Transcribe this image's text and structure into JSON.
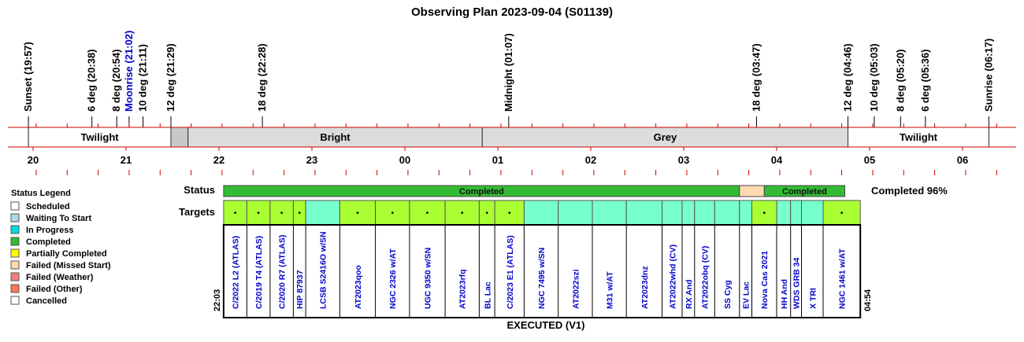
{
  "title": "Observing Plan 2023-09-04 (S01139)",
  "events": [
    {
      "label": "Sunset (19:57)",
      "time": 19.95,
      "color": "#000000"
    },
    {
      "label": "6 deg (20:38)",
      "time": 20.633,
      "color": "#000000"
    },
    {
      "label": "8 deg (20:54)",
      "time": 20.9,
      "color": "#000000"
    },
    {
      "label": "Moonrise (21:02)",
      "time": 21.033,
      "color": "#0000cc"
    },
    {
      "label": "10 deg (21:11)",
      "time": 21.183,
      "color": "#000000"
    },
    {
      "label": "12 deg (21:29)",
      "time": 21.483,
      "color": "#000000"
    },
    {
      "label": "18 deg (22:28)",
      "time": 22.467,
      "color": "#000000"
    },
    {
      "label": "Midnight (01:07)",
      "time": 25.117,
      "color": "#000000"
    },
    {
      "label": "18 deg (03:47)",
      "time": 27.783,
      "color": "#000000"
    },
    {
      "label": "12 deg (04:46)",
      "time": 28.767,
      "color": "#000000"
    },
    {
      "label": "10 deg (05:03)",
      "time": 29.05,
      "color": "#000000"
    },
    {
      "label": "8 deg (05:20)",
      "time": 29.333,
      "color": "#000000"
    },
    {
      "label": "6 deg (05:36)",
      "time": 29.6,
      "color": "#000000"
    },
    {
      "label": "Sunrise (06:17)",
      "time": 30.283,
      "color": "#000000"
    }
  ],
  "periods": [
    {
      "label": "Twilight",
      "start": 19.95,
      "end": 21.483,
      "color": "#ffffff"
    },
    {
      "label": "",
      "start": 21.483,
      "end": 21.667,
      "color": "#c8c8c8"
    },
    {
      "label": "Bright",
      "start": 21.667,
      "end": 24.833,
      "color": "#dcdcdc"
    },
    {
      "label": "Grey",
      "start": 24.833,
      "end": 28.767,
      "color": "#dcdcdc"
    },
    {
      "label": "Twilight",
      "start": 28.767,
      "end": 30.283,
      "color": "#ffffff"
    }
  ],
  "hour_ticks": [
    {
      "label": "20",
      "time": 20
    },
    {
      "label": "21",
      "time": 21
    },
    {
      "label": "22",
      "time": 22
    },
    {
      "label": "23",
      "time": 23
    },
    {
      "label": "00",
      "time": 24
    },
    {
      "label": "01",
      "time": 25
    },
    {
      "label": "02",
      "time": 26
    },
    {
      "label": "03",
      "time": 27
    },
    {
      "label": "04",
      "time": 28
    },
    {
      "label": "05",
      "time": 29
    },
    {
      "label": "06",
      "time": 30
    }
  ],
  "legend": {
    "title": "Status Legend",
    "items": [
      {
        "label": "Scheduled",
        "color": "#ffffff"
      },
      {
        "label": "Waiting To Start",
        "color": "#add8e6"
      },
      {
        "label": "In Progress",
        "color": "#00dddd"
      },
      {
        "label": "Completed",
        "color": "#33bb33"
      },
      {
        "label": "Partially Completed",
        "color": "#ffff00"
      },
      {
        "label": "Failed (Missed Start)",
        "color": "#ffdab0"
      },
      {
        "label": "Failed (Weather)",
        "color": "#f08080"
      },
      {
        "label": "Failed (Other)",
        "color": "#ff7755"
      },
      {
        "label": "Cancelled",
        "color": "#ffffff"
      }
    ]
  },
  "status_row": {
    "label": "Status",
    "segments": [
      {
        "label": "Completed",
        "start": 22.05,
        "end": 27.6,
        "color": "#33bb33"
      },
      {
        "label": "",
        "start": 27.6,
        "end": 27.867,
        "color": "#ffdab0"
      },
      {
        "label": "Completed",
        "start": 27.867,
        "end": 28.733,
        "color": "#33bb33"
      }
    ],
    "summary": "Completed 96%"
  },
  "targets_row": {
    "label": "Targets",
    "start_time": "22:03",
    "end_time": "04:54",
    "plan_start": 22.05,
    "plan_end": 28.9,
    "targets": [
      {
        "name": "C/2022 L2 (ATLAS)",
        "start": 22.05,
        "end": 22.3,
        "color": "#aaff33",
        "marker": "•"
      },
      {
        "name": "C/2019 T4 (ATLAS)",
        "start": 22.3,
        "end": 22.55,
        "color": "#aaff33",
        "marker": "•"
      },
      {
        "name": "C/2020 R7 (ATLAS)",
        "start": 22.55,
        "end": 22.8,
        "color": "#aaff33",
        "marker": "•"
      },
      {
        "name": "HIP 87937",
        "start": 22.8,
        "end": 22.933,
        "color": "#aaff33",
        "marker": "•"
      },
      {
        "name": "LCSB S2416O w/SN",
        "start": 22.933,
        "end": 23.3,
        "color": "#77ffcc",
        "marker": ""
      },
      {
        "name": "AT2023qoo",
        "start": 23.3,
        "end": 23.683,
        "color": "#aaff33",
        "marker": "•"
      },
      {
        "name": "NGC 2326 w/AT",
        "start": 23.683,
        "end": 24.05,
        "color": "#aaff33",
        "marker": "•"
      },
      {
        "name": "UGC 9350 w/SN",
        "start": 24.05,
        "end": 24.433,
        "color": "#aaff33",
        "marker": "•"
      },
      {
        "name": "AT2023rfq",
        "start": 24.433,
        "end": 24.8,
        "color": "#aaff33",
        "marker": "•"
      },
      {
        "name": "BL Lac",
        "start": 24.8,
        "end": 24.967,
        "color": "#aaff33",
        "marker": "•"
      },
      {
        "name": "C/2023 E1 (ATLAS)",
        "start": 24.967,
        "end": 25.283,
        "color": "#aaff33",
        "marker": "•"
      },
      {
        "name": "NGC 7495 w/SN",
        "start": 25.283,
        "end": 25.65,
        "color": "#77ffcc",
        "marker": ""
      },
      {
        "name": "AT2022szi",
        "start": 25.65,
        "end": 26.017,
        "color": "#77ffcc",
        "marker": ""
      },
      {
        "name": "M31 w/AT",
        "start": 26.017,
        "end": 26.383,
        "color": "#77ffcc",
        "marker": ""
      },
      {
        "name": "AT2023dnz",
        "start": 26.383,
        "end": 26.767,
        "color": "#77ffcc",
        "marker": ""
      },
      {
        "name": "AT2022whd (CV)",
        "start": 26.767,
        "end": 26.983,
        "color": "#77ffcc",
        "marker": ""
      },
      {
        "name": "RX And",
        "start": 26.983,
        "end": 27.117,
        "color": "#77ffcc",
        "marker": ""
      },
      {
        "name": "AT2022obq (CV)",
        "start": 27.117,
        "end": 27.333,
        "color": "#77ffcc",
        "marker": ""
      },
      {
        "name": "SS Cyg",
        "start": 27.333,
        "end": 27.6,
        "color": "#77ffcc",
        "marker": ""
      },
      {
        "name": "EV Lac",
        "start": 27.6,
        "end": 27.733,
        "color": "#77ffcc",
        "marker": ""
      },
      {
        "name": "Nova Cas 2021",
        "start": 27.733,
        "end": 28.0,
        "color": "#aaff33",
        "marker": "•"
      },
      {
        "name": "HH And",
        "start": 28.0,
        "end": 28.15,
        "color": "#77ffcc",
        "marker": ""
      },
      {
        "name": "WDS GRB 34",
        "start": 28.15,
        "end": 28.267,
        "color": "#77ffcc",
        "marker": ""
      },
      {
        "name": "X TRI",
        "start": 28.267,
        "end": 28.5,
        "color": "#77ffcc",
        "marker": ""
      },
      {
        "name": "NGC 1461 w/AT",
        "start": 28.5,
        "end": 28.9,
        "color": "#aaff33",
        "marker": "•"
      }
    ]
  },
  "footer": "EXECUTED (V1)",
  "colors": {
    "axis_line": "#cc0000",
    "target_text": "#0000cc"
  }
}
